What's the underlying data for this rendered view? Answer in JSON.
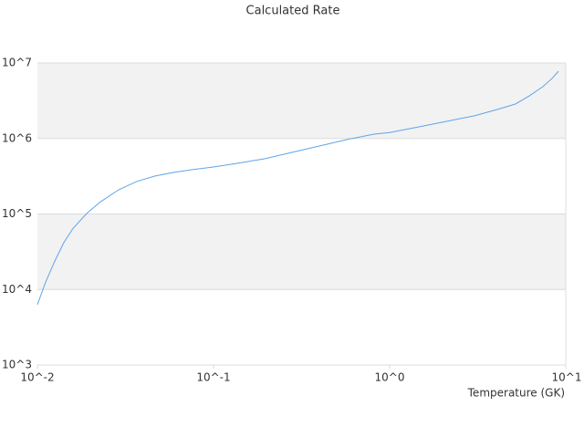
{
  "chart_data": {
    "type": "line",
    "title": "Calculated Rate",
    "x_label": "Temperature (GK)",
    "xscale": "log",
    "yscale": "log",
    "grid": true,
    "color": "#5ea5e8",
    "xlim": [
      0.01,
      10
    ],
    "ylim": [
      1000,
      10000000
    ],
    "xticks": [
      {
        "value": 0.01,
        "label": "10^-2"
      },
      {
        "value": 0.1,
        "label": "10^-1"
      },
      {
        "value": 1,
        "label": "10^0"
      },
      {
        "value": 10,
        "label": "10^1"
      }
    ],
    "yticks": [
      {
        "value": 1000,
        "label": "10^3"
      },
      {
        "value": 10000,
        "label": "10^4"
      },
      {
        "value": 100000,
        "label": "10^5"
      },
      {
        "value": 1000000,
        "label": "10^6"
      },
      {
        "value": 10000000,
        "label": "10^7"
      }
    ],
    "x": [
      0.01,
      0.0111,
      0.0125,
      0.0141,
      0.0159,
      0.019,
      0.0228,
      0.0289,
      0.0367,
      0.0466,
      0.0591,
      0.0751,
      0.101,
      0.136,
      0.195,
      0.279,
      0.399,
      0.571,
      0.816,
      1.0,
      1.48,
      2.12,
      3.03,
      4.08,
      5.18,
      6.21,
      7.41,
      8.36,
      9.1
    ],
    "values": [
      6300,
      12300,
      23300,
      41500,
      64000,
      101000,
      145000,
      209000,
      270000,
      318000,
      355000,
      385000,
      420000,
      468000,
      538000,
      655000,
      795000,
      966000,
      1140000,
      1200000,
      1430000,
      1690000,
      2000000,
      2420000,
      2860000,
      3670000,
      4850000,
      6240000,
      7780000
    ]
  }
}
